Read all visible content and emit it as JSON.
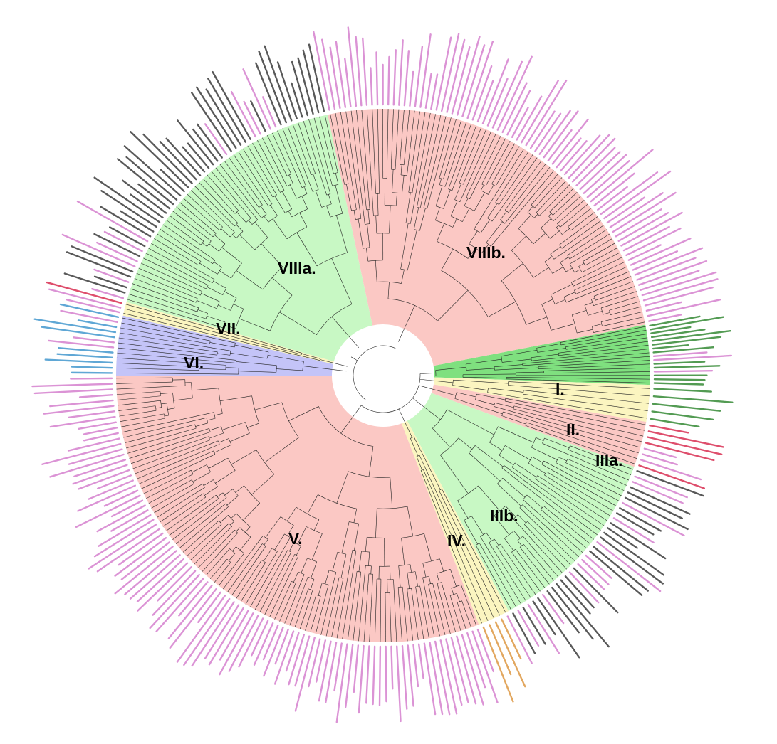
{
  "figure": {
    "clades": [
      {
        "label": "I.",
        "start_deg": -11,
        "end_deg": 2,
        "color": "#7fe07f",
        "tip_color": "#1a7a1a",
        "tips": 16
      },
      {
        "label": "II.",
        "start_deg": 2,
        "end_deg": 10,
        "color": "#fbf5c0",
        "tip_color": "#1a7a1a",
        "tips": 5
      },
      {
        "label": "IIIa.",
        "start_deg": 10,
        "end_deg": 20,
        "color": "#fbc8c4",
        "tip_color": "#d4143c",
        "tips": 8
      },
      {
        "label": "IIIb.",
        "start_deg": 20,
        "end_deg": 62,
        "color": "#c8f8c4",
        "tip_color": "#222222",
        "tips": 34
      },
      {
        "label": "IV.",
        "start_deg": 62,
        "end_deg": 69,
        "color": "#fbf5c0",
        "tip_color": "#d98a2a",
        "tips": 5
      },
      {
        "label": "V.",
        "start_deg": 69,
        "end_deg": 180,
        "color": "#fbc8c4",
        "tip_color": "#d070c8",
        "tips": 95
      },
      {
        "label": "VI.",
        "start_deg": 180,
        "end_deg": 193,
        "color": "#c4c4f8",
        "tip_color": "#2a8ac8",
        "tips": 12
      },
      {
        "label": "VII.",
        "start_deg": 193,
        "end_deg": 196,
        "color": "#fbf5c0",
        "tip_color": "#d4143c",
        "tips": 3
      },
      {
        "label": "VIIIa.",
        "start_deg": 196,
        "end_deg": 258,
        "color": "#c8f8c4",
        "tip_color": "#222222",
        "tips": 52
      },
      {
        "label": "VIIIb.",
        "start_deg": 258,
        "end_deg": 349,
        "color": "#fbc8c4",
        "tip_color": "#d070c8",
        "tips": 80
      }
    ]
  }
}
